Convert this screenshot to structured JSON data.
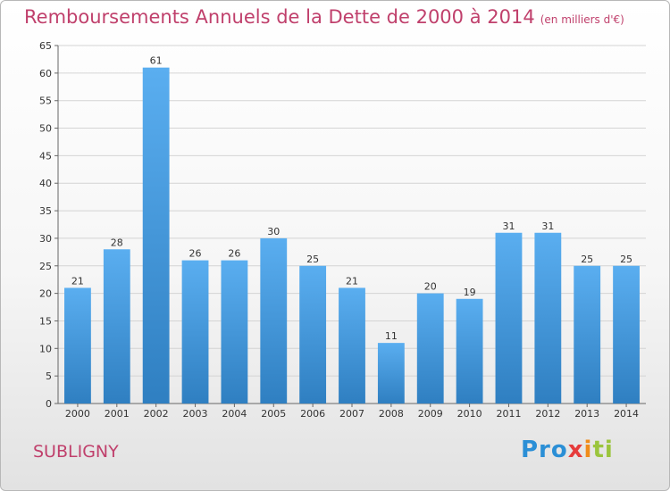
{
  "header": {
    "title": "Remboursements Annuels de la Dette de 2000 à 2014",
    "subtitle": "(en milliers d'€)"
  },
  "footer": {
    "commune": "SUBLIGNY",
    "logo_parts": [
      "Pro",
      "x",
      "i",
      "ti"
    ]
  },
  "chart_data": {
    "type": "bar",
    "title": "Remboursements Annuels de la Dette de 2000 à 2014",
    "subtitle": "(en milliers d'€)",
    "xlabel": "",
    "ylabel": "",
    "categories": [
      "2000",
      "2001",
      "2002",
      "2003",
      "2004",
      "2005",
      "2006",
      "2007",
      "2008",
      "2009",
      "2010",
      "2011",
      "2012",
      "2013",
      "2014"
    ],
    "values": [
      21,
      28,
      61,
      26,
      26,
      30,
      25,
      21,
      11,
      20,
      19,
      31,
      31,
      25,
      25
    ],
    "ylim": [
      0,
      65
    ],
    "yticks": [
      0,
      5,
      10,
      15,
      20,
      25,
      30,
      35,
      40,
      45,
      50,
      55,
      60,
      65
    ],
    "grid": true,
    "colors": {
      "bar_top": "#5aaef0",
      "bar_bottom": "#2f7fc1",
      "title": "#c0406c",
      "grid": "#d4d4d4"
    }
  }
}
